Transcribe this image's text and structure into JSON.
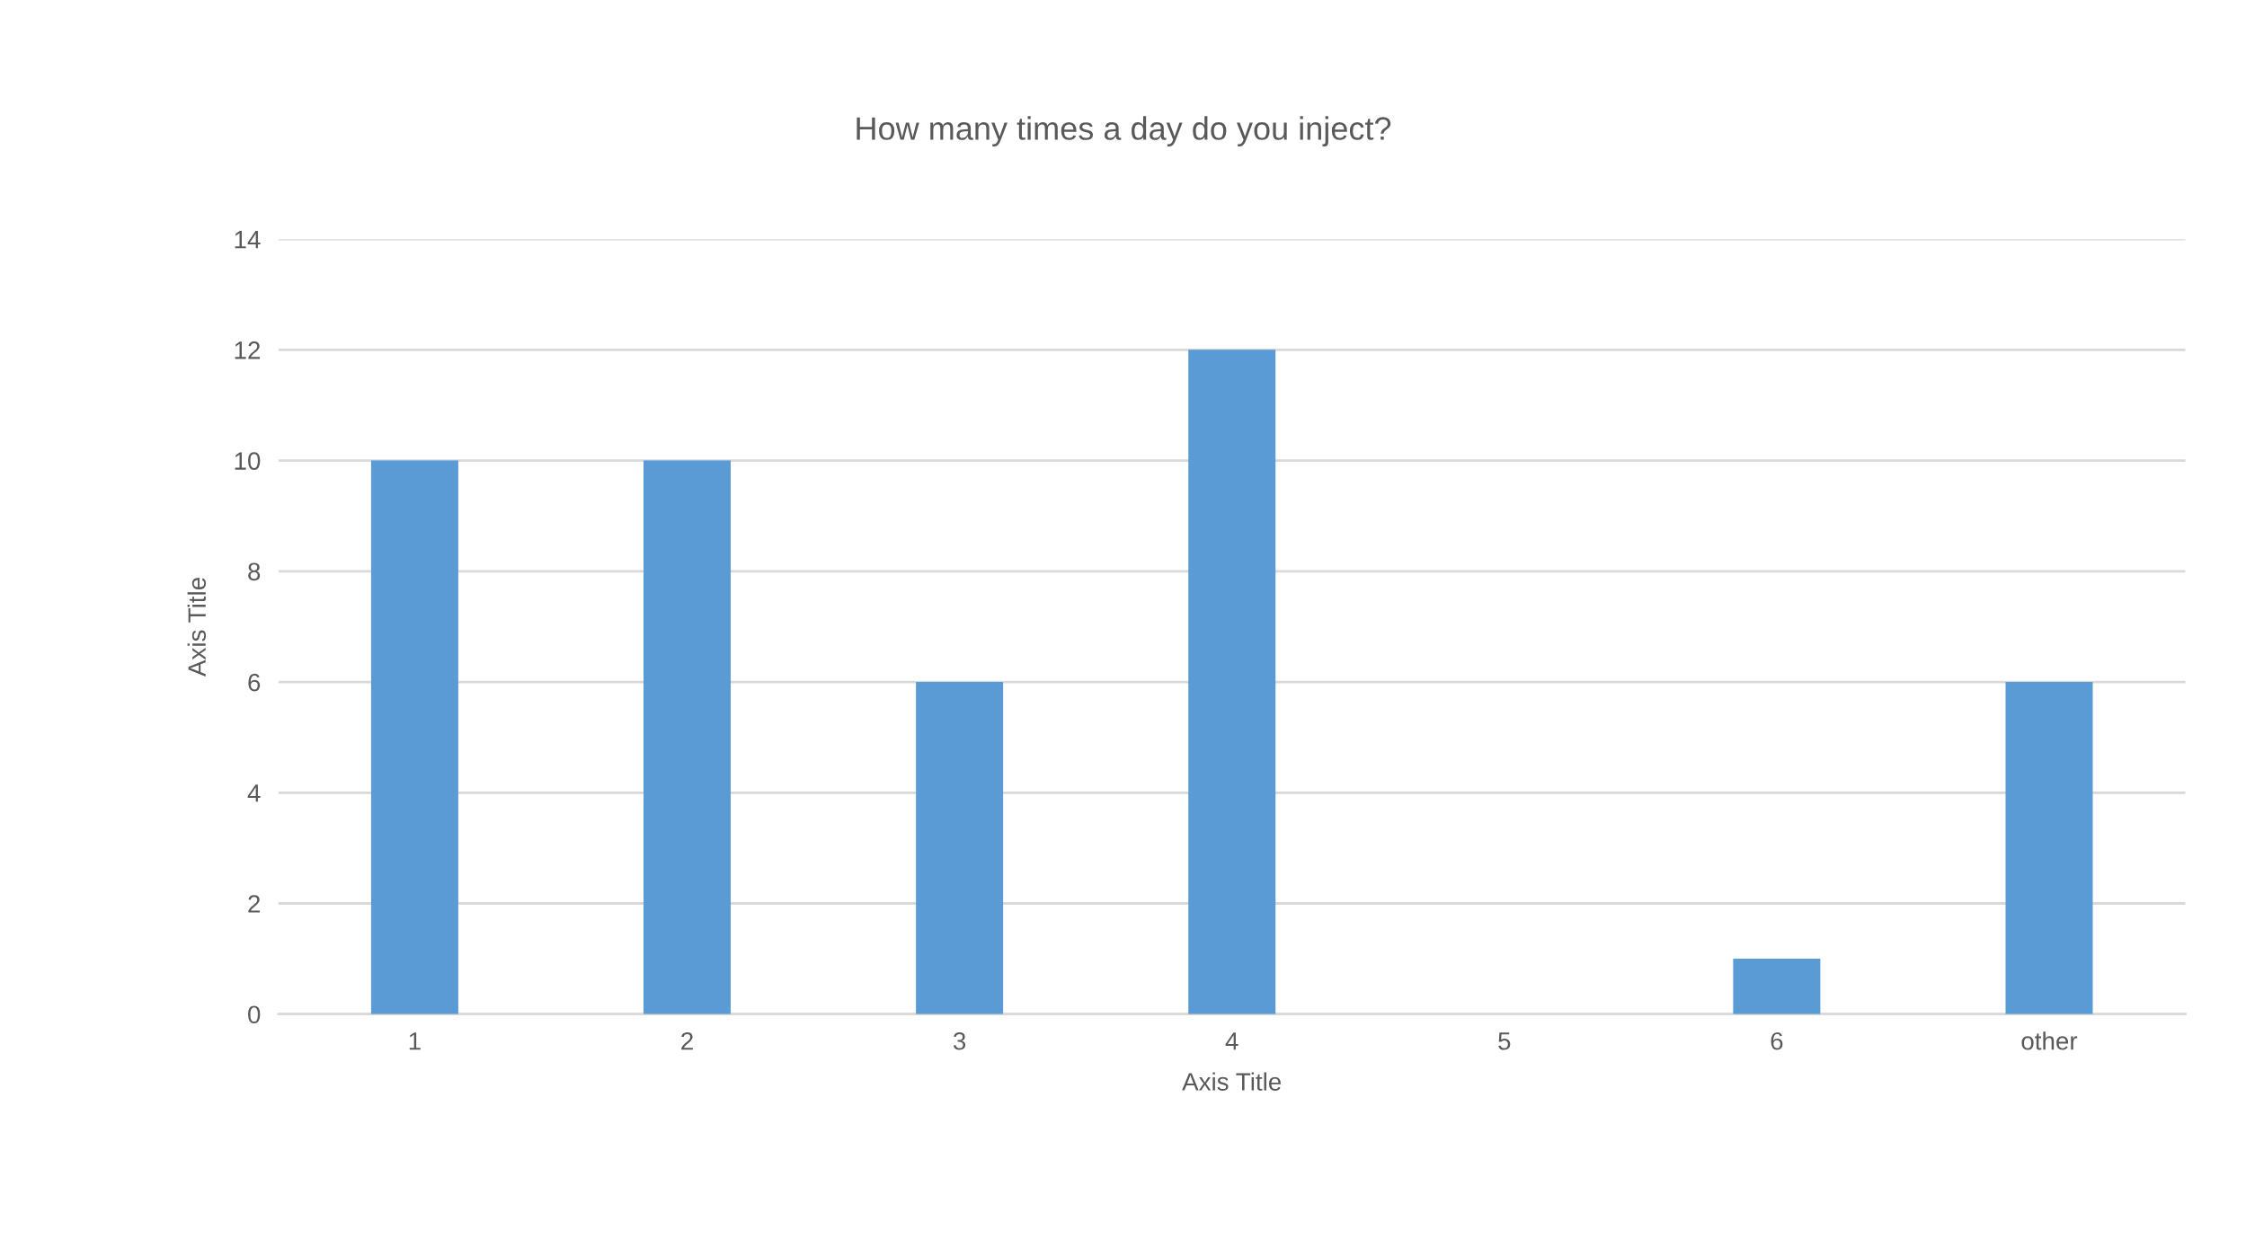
{
  "chart_data": {
    "type": "bar",
    "title": "How many times a day do you inject?",
    "xlabel": "Axis Title",
    "ylabel": "Axis Title",
    "categories": [
      "1",
      "2",
      "3",
      "4",
      "5",
      "6",
      "other"
    ],
    "values": [
      10,
      10,
      6,
      12,
      0,
      1,
      6
    ],
    "color": "#5b9bd5",
    "ylim": [
      0,
      14
    ],
    "yticks": [
      0,
      2,
      4,
      6,
      8,
      10,
      12,
      14
    ],
    "grid": "y",
    "legend": false
  }
}
